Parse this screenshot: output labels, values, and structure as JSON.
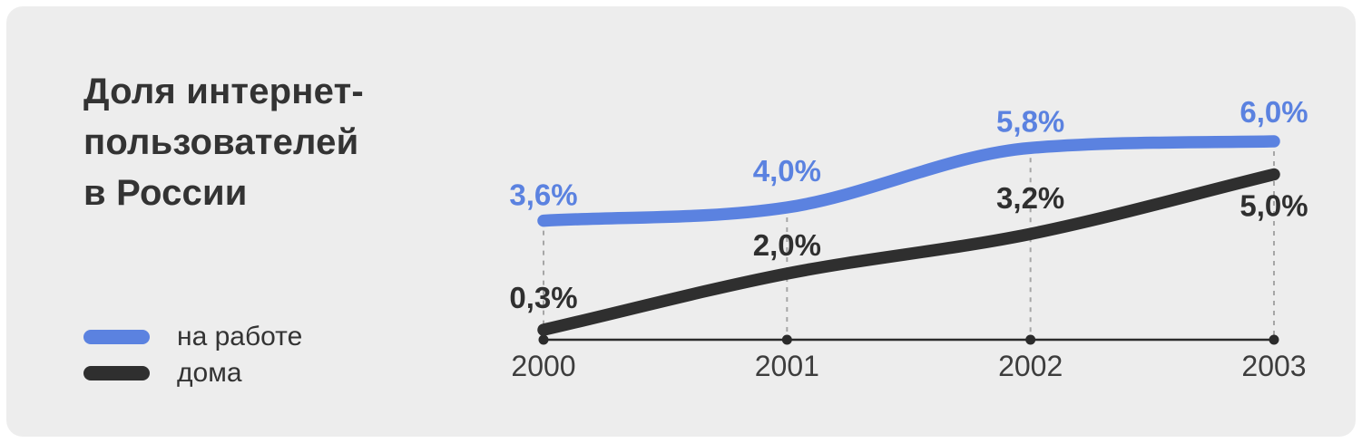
{
  "colors": {
    "card_bg": "#EDEDED",
    "page_bg": "#FFFFFF",
    "title_color": "#333333",
    "legend_text": "#333333",
    "grid": "#A6A6A6",
    "axis": "#2B2B2B",
    "year_label": "#3D3D3D",
    "accent_blue": "#5B82E0",
    "line_dark": "#2F2F2F"
  },
  "title": {
    "lines": [
      "Доля интернет-",
      "пользователей",
      "в России"
    ]
  },
  "chart_data": {
    "type": "line",
    "title": "Доля интернет-пользователей в России",
    "x": [
      2000,
      2001,
      2002,
      2003
    ],
    "x_labels": [
      "2000",
      "2001",
      "2002",
      "2003"
    ],
    "series": [
      {
        "key": "work",
        "name": "на работе",
        "color": "#5B82E0",
        "values": [
          3.6,
          4.0,
          5.8,
          6.0
        ],
        "labels": [
          "3,6%",
          "4,0%",
          "5,8%",
          "6,0%"
        ],
        "label_dy": [
          -17,
          -29,
          -18,
          -21
        ]
      },
      {
        "key": "home",
        "name": "дома",
        "color": "#2F2F2F",
        "values": [
          0.3,
          2.0,
          3.2,
          5.0
        ],
        "labels": [
          "0,3%",
          "2,0%",
          "3,2%",
          "5,0%"
        ],
        "label_dy": [
          -24,
          -20,
          -28,
          46
        ]
      }
    ],
    "ylim": [
      0,
      6.5
    ],
    "xlabel": "",
    "ylabel": "",
    "grid": "dashed-vertical-at-each-x",
    "legend_position": "bottom-left"
  }
}
